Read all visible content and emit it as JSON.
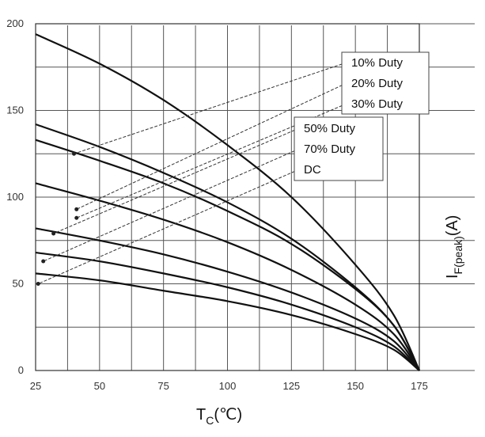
{
  "chart_data": {
    "type": "line",
    "title": "",
    "xlabel": "T",
    "xlabel_sub": "C",
    "xlabel_unit": "(℃)",
    "ylabel": "I",
    "ylabel_sub": "F(peak)",
    "ylabel_unit": "(A)",
    "xlim": [
      25,
      175
    ],
    "ylim": [
      0,
      200
    ],
    "x_ticks": [
      "25",
      "50",
      "75",
      "100",
      "125",
      "150",
      "175"
    ],
    "y_ticks": [
      "0",
      "50",
      "100",
      "150",
      "200"
    ],
    "grid": true,
    "legend_position": "top-right",
    "x": [
      25,
      50,
      75,
      100,
      125,
      150,
      165,
      175
    ],
    "series": [
      {
        "name": "10% Duty",
        "values": [
          194,
          177,
          156,
          130,
          100,
          61,
          32,
          0
        ]
      },
      {
        "name": "20% Duty",
        "values": [
          142,
          129,
          114,
          97,
          76,
          48,
          26,
          0
        ]
      },
      {
        "name": "30% Duty",
        "values": [
          133,
          121,
          108,
          92,
          73,
          47,
          26,
          0
        ]
      },
      {
        "name": "50% Duty",
        "values": [
          108,
          98,
          87,
          74,
          58,
          38,
          21,
          0
        ]
      },
      {
        "name": "70% Duty",
        "values": [
          82,
          75,
          67,
          57,
          45,
          30,
          17,
          0
        ]
      },
      {
        "name": "DC",
        "values": [
          56,
          52,
          46,
          40,
          32,
          21,
          12,
          0
        ]
      }
    ],
    "extra_series": [
      {
        "values": [
          68,
          63,
          56,
          48,
          38,
          25,
          14,
          0
        ]
      }
    ],
    "legend": [
      "10% Duty",
      "20% Duty",
      "30% Duty",
      "50% Duty",
      "70% Duty",
      "DC"
    ]
  }
}
